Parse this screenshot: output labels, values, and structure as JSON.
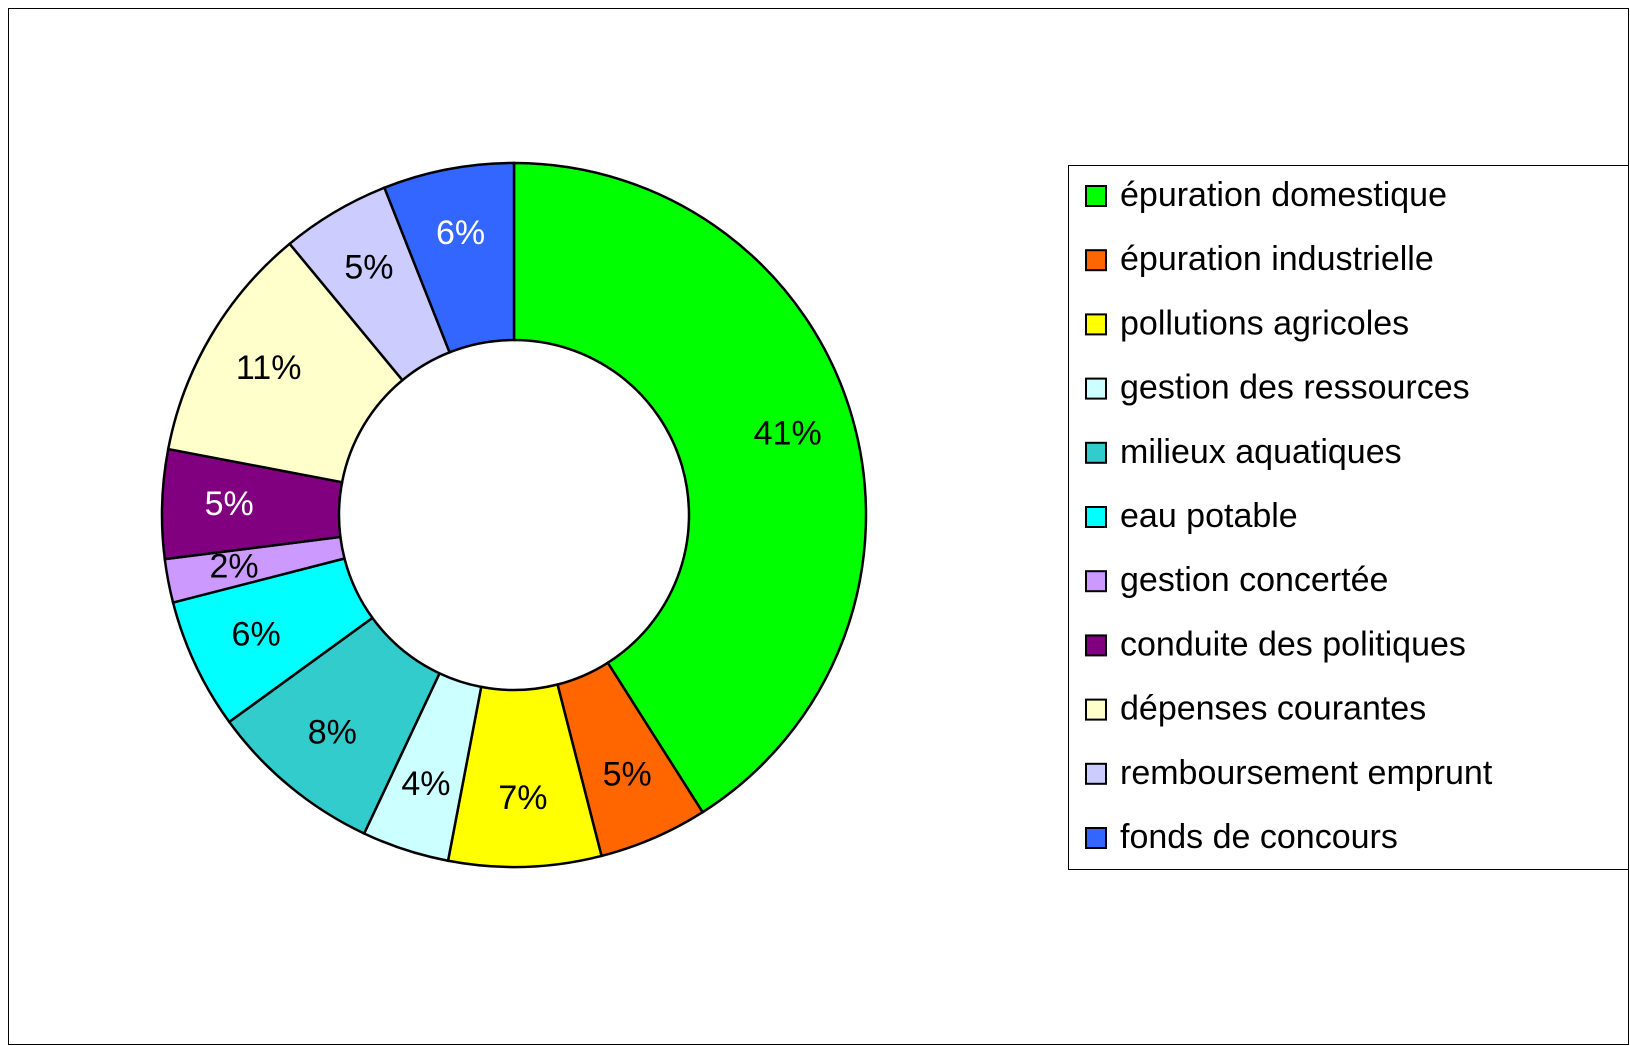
{
  "chart_data": {
    "type": "donut",
    "categories": [
      "épuration domestique",
      "épuration industrielle",
      "pollutions agricoles",
      "gestion des ressources",
      "milieux aquatiques",
      "eau potable",
      "gestion concertée",
      "conduite des politiques",
      "dépenses courantes",
      "remboursement emprunt",
      "fonds de concours"
    ],
    "values": [
      41,
      5,
      7,
      4,
      8,
      6,
      2,
      5,
      11,
      5,
      6
    ],
    "value_labels": [
      "41%",
      "5%",
      "7%",
      "4%",
      "8%",
      "6%",
      "2%",
      "5%",
      "11%",
      "5%",
      "6%"
    ],
    "colors": [
      "#00ff00",
      "#ff6600",
      "#ffff00",
      "#ccffff",
      "#33cccc",
      "#00ffff",
      "#cc99ff",
      "#800080",
      "#ffffcc",
      "#ccccff",
      "#3366ff"
    ],
    "legend": "right"
  }
}
